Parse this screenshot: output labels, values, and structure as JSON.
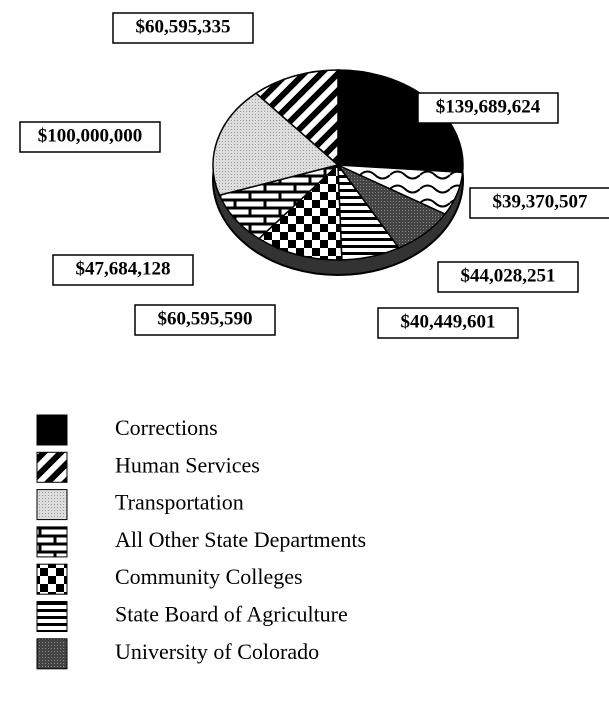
{
  "chart_data": {
    "type": "pie",
    "categories": [
      "Corrections",
      "Human Services",
      "Transportation",
      "All Other State Departments",
      "Community Colleges",
      "State Board of Agriculture",
      "University of Colorado",
      null
    ],
    "values": [
      139689624,
      60595335,
      100000000,
      47684128,
      60595590,
      40449601,
      44028251,
      39370507
    ],
    "value_labels": [
      "$139,689,624",
      "$60,595,335",
      "$100,000,000",
      "$47,684,128",
      "$60,595,590",
      "$40,449,601",
      "$44,028,251",
      "$39,370,507"
    ]
  }
}
